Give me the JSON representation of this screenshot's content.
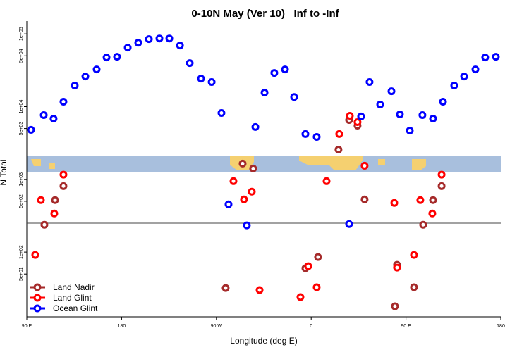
{
  "chart_data": {
    "type": "scatter",
    "title": "0-10N May (Ver 10)   Inf to -Inf",
    "x_label": "Longitude (deg E)",
    "y_label": "N Total",
    "log_y": true,
    "legend": "bottomleft",
    "xlim": [
      90,
      540
    ],
    "ylim": [
      12.9,
      150000
    ],
    "xticks": [
      {
        "value": 90,
        "label": "90 E"
      },
      {
        "value": 180,
        "label": "180"
      },
      {
        "value": 270,
        "label": "90 W"
      },
      {
        "value": 360,
        "label": "0"
      },
      {
        "value": 450,
        "label": "90 E"
      },
      {
        "value": 540,
        "label": "180"
      }
    ],
    "yticks": [
      {
        "value": 50,
        "label": "5e+01"
      },
      {
        "value": 100,
        "label": "1e+02"
      },
      {
        "value": 500,
        "label": "5e+02"
      },
      {
        "value": 1000,
        "label": "1e+03"
      },
      {
        "value": 5000,
        "label": "5e+03"
      },
      {
        "value": 10000,
        "label": "1e+04"
      },
      {
        "value": 50000,
        "label": "5e+04"
      },
      {
        "value": 100000,
        "label": "1e+05"
      }
    ],
    "hline": 250,
    "series": [
      {
        "name": "Land Nadir",
        "color": "#a52a2a",
        "x": [
          106.7,
          116.8,
          124.8,
          278.8,
          294.9,
          304.9,
          354.5,
          366.5,
          385.9,
          396.0,
          404.0,
          410.7,
          441.5,
          439.5,
          457.6,
          466.3,
          475.7,
          483.8
        ],
        "values": [
          238,
          519,
          809,
          32.1,
          1650,
          1410,
          60.0,
          85.5,
          2570,
          6550,
          5480,
          531,
          67.0,
          18.0,
          32.9,
          238,
          519,
          809
        ]
      },
      {
        "name": "Land Glint",
        "color": "#ff0000",
        "x": [
          98.0,
          103.4,
          116.1,
          124.8,
          286.2,
          296.2,
          303.6,
          311.0,
          349.8,
          357.2,
          365.2,
          374.6,
          386.6,
          396.7,
          404.0,
          410.7,
          438.9,
          441.5,
          457.6,
          463.6,
          475.0,
          483.8
        ],
        "values": [
          91.5,
          519,
          340,
          1160,
          946,
          531,
          678,
          30.1,
          24.1,
          64.1,
          32.9,
          946,
          4200,
          7480,
          6130,
          1540,
          475,
          61.3,
          91.5,
          519,
          340,
          1160
        ]
      },
      {
        "name": "Ocean Glint",
        "color": "#0000ff",
        "x": [
          94.0,
          106.1,
          115.4,
          124.8,
          135.5,
          145.6,
          156.3,
          165.7,
          175.7,
          185.8,
          195.8,
          205.9,
          215.9,
          225.3,
          235.4,
          244.7,
          255.4,
          265.5,
          274.8,
          281.5,
          298.9,
          307.0,
          315.7,
          325.0,
          335.1,
          343.8,
          354.5,
          365.2,
          396.0,
          407.4,
          415.4,
          425.5,
          436.2,
          444.2,
          453.6,
          465.6,
          475.7,
          485.1,
          495.8,
          505.2,
          515.9,
          525.2,
          535.3
        ],
        "values": [
          4800,
          7660,
          6850,
          11700,
          19500,
          26000,
          32500,
          47500,
          48500,
          64900,
          75700,
          84700,
          86500,
          86500,
          69300,
          39700,
          24300,
          21800,
          8190,
          454,
          233,
          5250,
          15600,
          29100,
          32500,
          13600,
          4200,
          3840,
          243,
          7330,
          21800,
          10700,
          16300,
          7830,
          4690,
          7660,
          6850,
          11700,
          19500,
          26000,
          32500,
          47500,
          48500
        ]
      }
    ]
  }
}
